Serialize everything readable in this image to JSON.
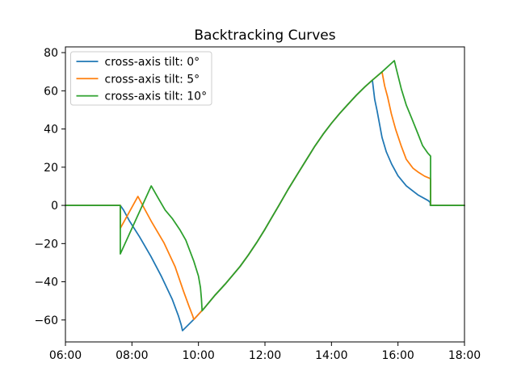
{
  "figure": {
    "background": "#ffffff",
    "frame_color": "#000000"
  },
  "chart_data": {
    "type": "line",
    "title": "Backtracking Curves",
    "xlabel": "",
    "ylabel": "",
    "grid": false,
    "xlim": [
      6,
      18
    ],
    "ylim": [
      -71.5,
      83
    ],
    "x_ticks": [
      {
        "value": 6,
        "label": "06:00"
      },
      {
        "value": 8,
        "label": "08:00"
      },
      {
        "value": 10,
        "label": "10:00"
      },
      {
        "value": 12,
        "label": "12:00"
      },
      {
        "value": 14,
        "label": "14:00"
      },
      {
        "value": 16,
        "label": "16:00"
      },
      {
        "value": 18,
        "label": "18:00"
      }
    ],
    "y_ticks": [
      {
        "value": -60,
        "label": "−60"
      },
      {
        "value": -40,
        "label": "−40"
      },
      {
        "value": -20,
        "label": "−20"
      },
      {
        "value": 0,
        "label": "0"
      },
      {
        "value": 20,
        "label": "20"
      },
      {
        "value": 40,
        "label": "40"
      },
      {
        "value": 60,
        "label": "60"
      },
      {
        "value": 80,
        "label": "80"
      }
    ],
    "legend": {
      "position": "upper left",
      "border_color": "#cccccc",
      "background": "#ffffff"
    },
    "x_unit": "time of day (hours)",
    "y_unit": "tracker rotation (degrees)",
    "series": [
      {
        "name": "cross-axis tilt: 0°",
        "color": "#1f77b4",
        "points": [
          [
            6.0,
            0
          ],
          [
            7.65,
            0
          ],
          [
            7.75,
            -2.5
          ],
          [
            7.92,
            -8
          ],
          [
            8.23,
            -16.5
          ],
          [
            8.57,
            -26.7
          ],
          [
            8.89,
            -37.3
          ],
          [
            9.21,
            -49.1
          ],
          [
            9.4,
            -58
          ],
          [
            9.48,
            -62.5
          ],
          [
            9.52,
            -65.6
          ],
          [
            9.9,
            -59
          ],
          [
            10.2,
            -53.3
          ],
          [
            10.5,
            -47
          ],
          [
            10.8,
            -41.3
          ],
          [
            11.25,
            -32
          ],
          [
            11.5,
            -26
          ],
          [
            11.75,
            -19.5
          ],
          [
            12.0,
            -12.5
          ],
          [
            12.2,
            -6.5
          ],
          [
            12.42,
            0
          ],
          [
            12.7,
            8.5
          ],
          [
            13.0,
            17
          ],
          [
            13.25,
            24
          ],
          [
            13.5,
            31
          ],
          [
            13.75,
            37.3
          ],
          [
            14.0,
            43
          ],
          [
            14.25,
            48.2
          ],
          [
            14.5,
            53
          ],
          [
            14.75,
            57.7
          ],
          [
            15.0,
            62
          ],
          [
            15.23,
            65.6
          ],
          [
            15.3,
            55.5
          ],
          [
            15.37,
            49.7
          ],
          [
            15.52,
            35.6
          ],
          [
            15.65,
            28
          ],
          [
            15.81,
            21.6
          ],
          [
            16.0,
            15.5
          ],
          [
            16.25,
            10.2
          ],
          [
            16.6,
            5.5
          ],
          [
            16.91,
            2.5
          ],
          [
            16.97,
            1.5
          ],
          [
            16.97,
            0
          ],
          [
            18.0,
            0
          ]
        ]
      },
      {
        "name": "cross-axis tilt: 5°",
        "color": "#ff7f0e",
        "points": [
          [
            6.0,
            0
          ],
          [
            7.65,
            0
          ],
          [
            7.65,
            -12
          ],
          [
            8.18,
            4.7
          ],
          [
            8.4,
            -2.5
          ],
          [
            8.6,
            -8.9
          ],
          [
            8.96,
            -19.5
          ],
          [
            9.3,
            -32.2
          ],
          [
            9.55,
            -44.9
          ],
          [
            9.72,
            -53
          ],
          [
            9.83,
            -58
          ],
          [
            9.86,
            -59.7
          ],
          [
            9.9,
            -59
          ],
          [
            10.2,
            -53.3
          ],
          [
            10.5,
            -47
          ],
          [
            10.8,
            -41.3
          ],
          [
            11.25,
            -32
          ],
          [
            11.5,
            -26
          ],
          [
            11.75,
            -19.5
          ],
          [
            12.0,
            -12.5
          ],
          [
            12.2,
            -6.5
          ],
          [
            12.42,
            0
          ],
          [
            12.7,
            8.5
          ],
          [
            13.0,
            17
          ],
          [
            13.25,
            24
          ],
          [
            13.5,
            31
          ],
          [
            13.75,
            37.3
          ],
          [
            14.0,
            43
          ],
          [
            14.25,
            48.2
          ],
          [
            14.5,
            53
          ],
          [
            14.75,
            57.7
          ],
          [
            15.0,
            62
          ],
          [
            15.23,
            65.6
          ],
          [
            15.52,
            69.9
          ],
          [
            15.6,
            62.5
          ],
          [
            15.69,
            56.7
          ],
          [
            15.8,
            48
          ],
          [
            15.93,
            39.8
          ],
          [
            16.1,
            31
          ],
          [
            16.25,
            24.1
          ],
          [
            16.45,
            19.5
          ],
          [
            16.6,
            17.5
          ],
          [
            16.8,
            15.3
          ],
          [
            16.98,
            14
          ],
          [
            16.98,
            0
          ],
          [
            18.0,
            0
          ]
        ]
      },
      {
        "name": "cross-axis tilt: 10°",
        "color": "#2ca02c",
        "points": [
          [
            6.0,
            0
          ],
          [
            7.65,
            0
          ],
          [
            7.65,
            -25.4
          ],
          [
            8.58,
            10.2
          ],
          [
            8.8,
            3.5
          ],
          [
            9.0,
            -2.5
          ],
          [
            9.21,
            -6.8
          ],
          [
            9.45,
            -13
          ],
          [
            9.62,
            -18.2
          ],
          [
            9.86,
            -29.2
          ],
          [
            10.0,
            -37
          ],
          [
            10.06,
            -43
          ],
          [
            10.09,
            -49
          ],
          [
            10.11,
            -55.2
          ],
          [
            10.2,
            -53.3
          ],
          [
            10.5,
            -47
          ],
          [
            10.8,
            -41.3
          ],
          [
            11.25,
            -32
          ],
          [
            11.5,
            -26
          ],
          [
            11.75,
            -19.5
          ],
          [
            12.0,
            -12.5
          ],
          [
            12.2,
            -6.5
          ],
          [
            12.42,
            0
          ],
          [
            12.7,
            8.5
          ],
          [
            13.0,
            17
          ],
          [
            13.25,
            24
          ],
          [
            13.5,
            31
          ],
          [
            13.75,
            37.3
          ],
          [
            14.0,
            43
          ],
          [
            14.25,
            48.2
          ],
          [
            14.5,
            53
          ],
          [
            14.75,
            57.7
          ],
          [
            15.0,
            62
          ],
          [
            15.23,
            65.6
          ],
          [
            15.52,
            69.9
          ],
          [
            15.89,
            75.8
          ],
          [
            15.95,
            71.5
          ],
          [
            16.1,
            61
          ],
          [
            16.25,
            52.5
          ],
          [
            16.42,
            45.3
          ],
          [
            16.6,
            37.5
          ],
          [
            16.74,
            31.3
          ],
          [
            16.9,
            27.3
          ],
          [
            16.98,
            25.8
          ],
          [
            16.98,
            0
          ],
          [
            18.0,
            0
          ]
        ]
      }
    ]
  }
}
